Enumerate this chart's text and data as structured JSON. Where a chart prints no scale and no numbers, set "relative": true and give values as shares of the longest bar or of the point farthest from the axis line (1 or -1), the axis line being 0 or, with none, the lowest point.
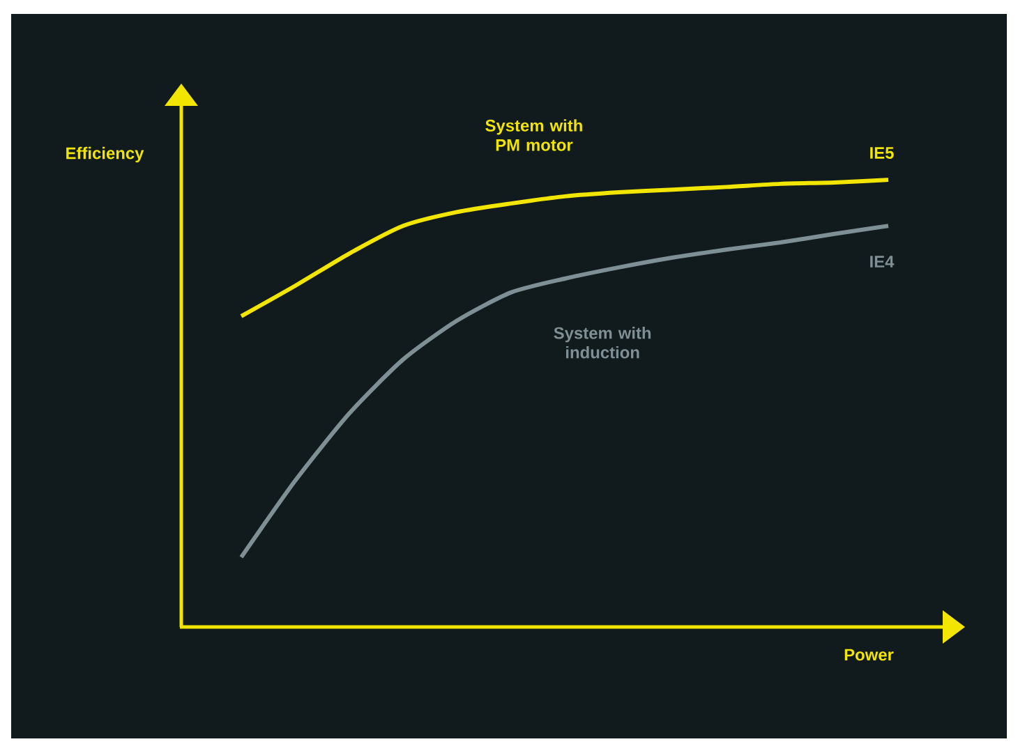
{
  "chart_data": {
    "type": "line",
    "relative": true,
    "xlabel": "Power",
    "ylabel": "Efficiency",
    "categories": [
      null,
      null,
      null,
      null,
      null,
      null,
      null,
      null,
      null,
      null,
      null,
      null,
      null
    ],
    "series": [
      {
        "name": "System with PM motor",
        "color": "#f2e500",
        "values": [
          0.695,
          0.763,
          0.835,
          0.897,
          0.928,
          0.947,
          0.963,
          0.972,
          0.978,
          0.984,
          0.991,
          0.994,
          1
        ]
      },
      {
        "name": "System with induction",
        "color": "#7f8f96",
        "values": [
          0.156,
          0.327,
          0.477,
          0.598,
          0.685,
          0.748,
          0.779,
          0.804,
          0.826,
          0.844,
          0.86,
          0.879,
          0.897
        ]
      }
    ],
    "annotations": [
      "IE5",
      "IE4"
    ]
  }
}
